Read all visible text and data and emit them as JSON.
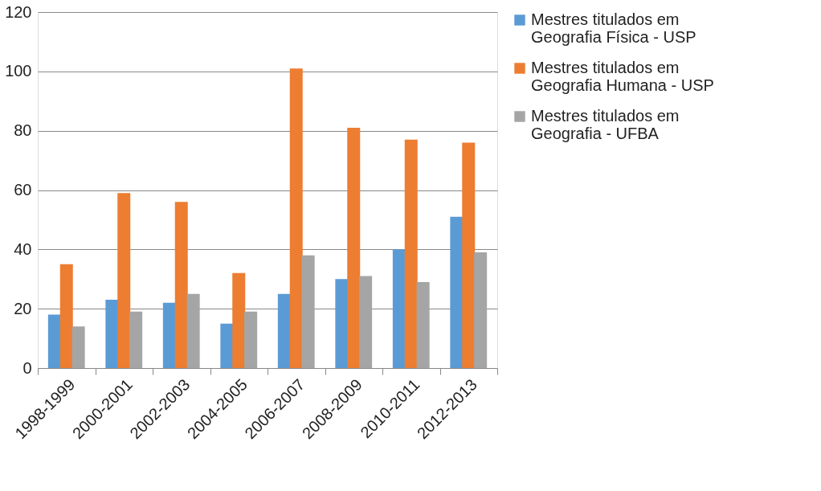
{
  "chart_data": {
    "type": "bar",
    "categories": [
      "1998-1999",
      "2000-2001",
      "2002-2003",
      "2004-2005",
      "2006-2007",
      "2008-2009",
      "2010-2011",
      "2012-2013"
    ],
    "series": [
      {
        "name": "Mestres titulados em Geografia Física - USP",
        "color": "#5b9bd5",
        "values": [
          18,
          23,
          22,
          15,
          25,
          30,
          40,
          51
        ]
      },
      {
        "name": "Mestres titulados em Geografia Humana - USP",
        "color": "#ed7d31",
        "values": [
          35,
          59,
          56,
          32,
          101,
          81,
          77,
          76
        ]
      },
      {
        "name": "Mestres titulados em Geografia - UFBA",
        "color": "#a5a5a5",
        "values": [
          14,
          19,
          25,
          19,
          38,
          31,
          29,
          39
        ]
      }
    ],
    "ylim": [
      0,
      120
    ],
    "yticks": [
      0,
      20,
      40,
      60,
      80,
      100,
      120
    ],
    "grid": "y",
    "legend": "right"
  }
}
